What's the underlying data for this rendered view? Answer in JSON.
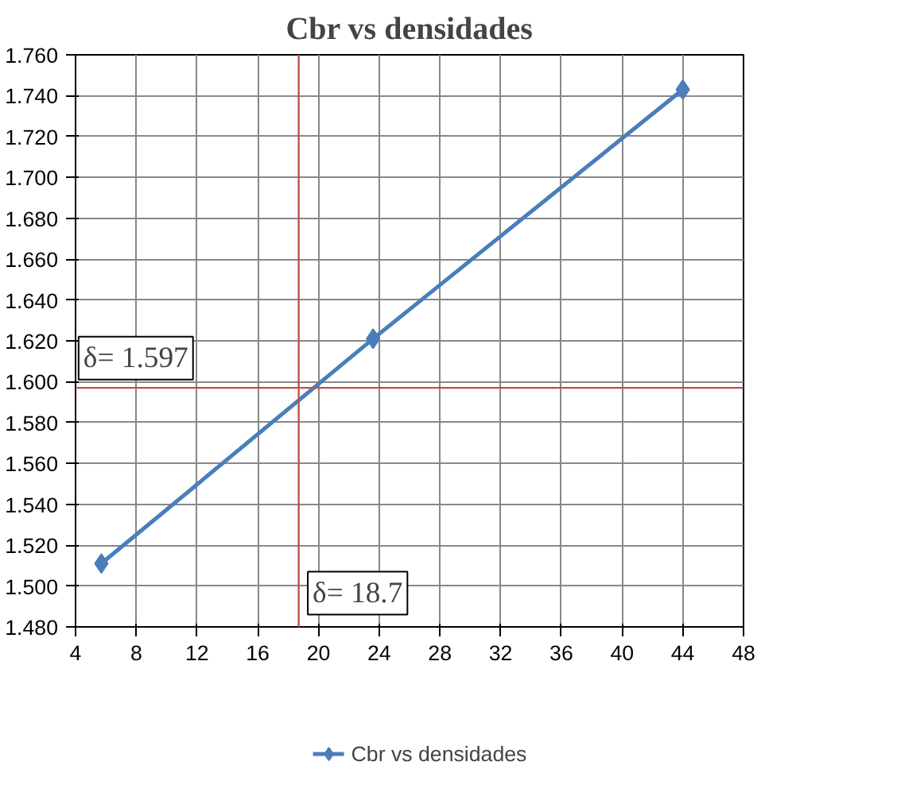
{
  "chart_data": {
    "type": "line",
    "title": "Cbr vs densidades",
    "x": [
      5.7,
      23.6,
      44.0
    ],
    "series": [
      {
        "name": "Cbr vs densidades",
        "color": "#4a7ebb",
        "values": [
          1.511,
          1.621,
          1.743
        ]
      }
    ],
    "xlim": [
      4,
      48
    ],
    "xticks": [
      4,
      8,
      12,
      16,
      20,
      24,
      28,
      32,
      36,
      40,
      44,
      48
    ],
    "ylim": [
      1.48,
      1.76
    ],
    "yticks": [
      {
        "value": 1.48,
        "label": "1.480"
      },
      {
        "value": 1.5,
        "label": "1.500"
      },
      {
        "value": 1.52,
        "label": "1.520"
      },
      {
        "value": 1.54,
        "label": "1.540"
      },
      {
        "value": 1.56,
        "label": "1.560"
      },
      {
        "value": 1.58,
        "label": "1.580"
      },
      {
        "value": 1.6,
        "label": "1.600"
      },
      {
        "value": 1.62,
        "label": "1.620"
      },
      {
        "value": 1.64,
        "label": "1.640"
      },
      {
        "value": 1.66,
        "label": "1.660"
      },
      {
        "value": 1.68,
        "label": "1.680"
      },
      {
        "value": 1.7,
        "label": "1.700"
      },
      {
        "value": 1.72,
        "label": "1.720"
      },
      {
        "value": 1.74,
        "label": "1.740"
      },
      {
        "value": 1.76,
        "label": "1.760"
      }
    ],
    "ref_lines": [
      {
        "axis": "y",
        "value": 1.597,
        "label": "δ= 1.597",
        "color": "#c0504d"
      },
      {
        "axis": "x",
        "value": 18.7,
        "label": "δ= 18.7",
        "color": "#c0504d"
      }
    ],
    "grid": true,
    "legend": "bottom",
    "marker": "diamond",
    "line_style": "solid"
  }
}
